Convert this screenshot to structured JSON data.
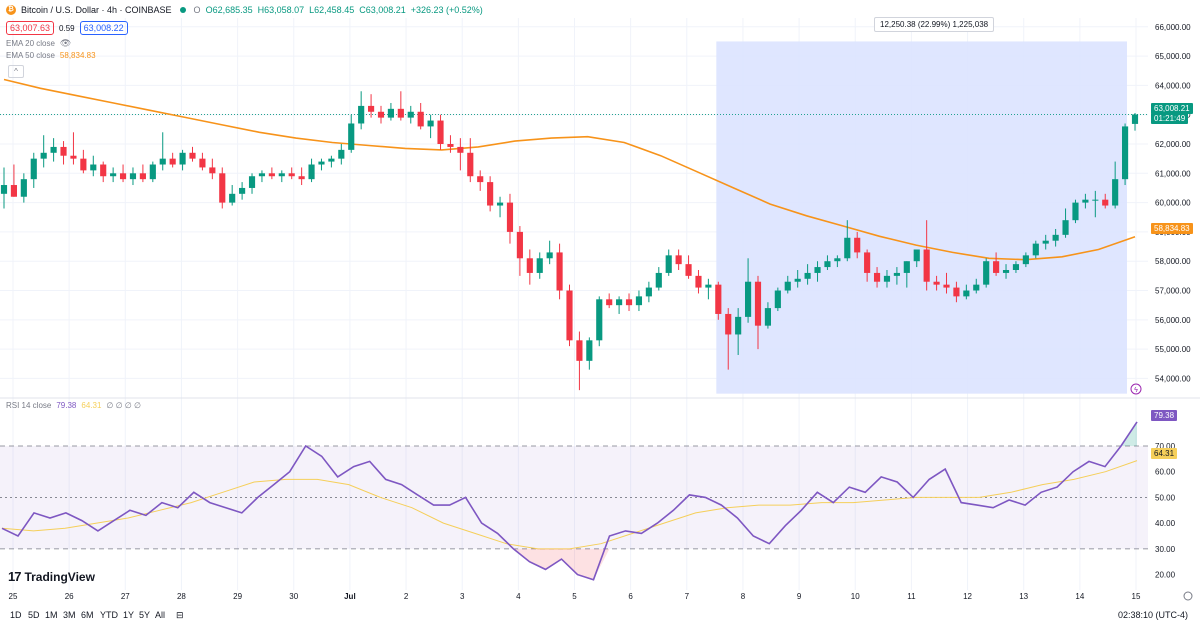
{
  "header": {
    "symbol": "Bitcoin / U.S. Dollar · 4h · COINBASE",
    "open": "O62,685.35",
    "high": "H63,058.07",
    "low": "L62,458.45",
    "close": "C63,008.21",
    "change": "+326.23 (+0.52%)",
    "bid": "63,007.63",
    "spread": "0.59",
    "ask": "63,008.22"
  },
  "indicators": {
    "ema20_label": "EMA 20 close",
    "ema50_label": "EMA 50 close",
    "ema50_value": "58,834.83",
    "rsi_label": "RSI 14 close",
    "rsi_value": "79.38",
    "rsi_ma_value": "64.31",
    "rsi_extra": "∅ ∅ ∅ ∅"
  },
  "measure_label": "12,250.38 (22.99%) 1,225,038",
  "price_labels": {
    "current": "63,008.21",
    "countdown": "01:21:49",
    "ema50": "58,834.83",
    "rsi": "79.38",
    "rsi_ma": "64.31"
  },
  "price_axis": [
    "66,000.00",
    "65,000.00",
    "64,000.00",
    "63,000.00",
    "62,000.00",
    "61,000.00",
    "60,000.00",
    "59,000.00",
    "58,000.00",
    "57,000.00",
    "56,000.00",
    "55,000.00",
    "54,000.00"
  ],
  "rsi_axis": [
    "70.00",
    "60.00",
    "50.00",
    "40.00",
    "30.00",
    "20.00"
  ],
  "time_axis": [
    "25",
    "26",
    "27",
    "28",
    "29",
    "30",
    "Jul",
    "2",
    "3",
    "4",
    "5",
    "6",
    "7",
    "8",
    "9",
    "10",
    "11",
    "12",
    "13",
    "14",
    "15"
  ],
  "timeframes": [
    "1D",
    "5D",
    "1M",
    "3M",
    "6M",
    "YTD",
    "1Y",
    "5Y",
    "All"
  ],
  "clock": "02:38:10 (UTC-4)",
  "brand": "TradingView",
  "colors": {
    "up": "#089981",
    "down": "#f23645",
    "ema50": "#f7931a",
    "rsi": "#7e57c2",
    "rsi_ma": "#f5cf5a",
    "measure": "#dbe3ff"
  },
  "chart_data": {
    "type": "candlestick",
    "interval": "4h",
    "ylim": [
      53400,
      66300
    ],
    "rsi_ylim": [
      14,
      84
    ],
    "candles": [
      {
        "o": 60300,
        "h": 61200,
        "l": 59800,
        "c": 60600
      },
      {
        "o": 60600,
        "h": 61300,
        "l": 60200,
        "c": 60200
      },
      {
        "o": 60200,
        "h": 61000,
        "l": 60000,
        "c": 60800
      },
      {
        "o": 60800,
        "h": 61700,
        "l": 60500,
        "c": 61500
      },
      {
        "o": 61500,
        "h": 62300,
        "l": 61200,
        "c": 61700
      },
      {
        "o": 61700,
        "h": 62200,
        "l": 61400,
        "c": 61900
      },
      {
        "o": 61900,
        "h": 62100,
        "l": 61300,
        "c": 61600
      },
      {
        "o": 61600,
        "h": 62400,
        "l": 61300,
        "c": 61500
      },
      {
        "o": 61500,
        "h": 61800,
        "l": 61000,
        "c": 61100
      },
      {
        "o": 61100,
        "h": 61600,
        "l": 60900,
        "c": 61300
      },
      {
        "o": 61300,
        "h": 61400,
        "l": 60700,
        "c": 60900
      },
      {
        "o": 60900,
        "h": 61200,
        "l": 60700,
        "c": 61000
      },
      {
        "o": 61000,
        "h": 61300,
        "l": 60700,
        "c": 60800
      },
      {
        "o": 60800,
        "h": 61200,
        "l": 60600,
        "c": 61000
      },
      {
        "o": 61000,
        "h": 61300,
        "l": 60700,
        "c": 60800
      },
      {
        "o": 60800,
        "h": 61400,
        "l": 60700,
        "c": 61300
      },
      {
        "o": 61300,
        "h": 62400,
        "l": 61100,
        "c": 61500
      },
      {
        "o": 61500,
        "h": 61700,
        "l": 61200,
        "c": 61300
      },
      {
        "o": 61300,
        "h": 61800,
        "l": 61100,
        "c": 61700
      },
      {
        "o": 61700,
        "h": 61900,
        "l": 61400,
        "c": 61500
      },
      {
        "o": 61500,
        "h": 61700,
        "l": 61100,
        "c": 61200
      },
      {
        "o": 61200,
        "h": 61500,
        "l": 60800,
        "c": 61000
      },
      {
        "o": 61000,
        "h": 61200,
        "l": 59800,
        "c": 60000
      },
      {
        "o": 60000,
        "h": 60600,
        "l": 59900,
        "c": 60300
      },
      {
        "o": 60300,
        "h": 60700,
        "l": 60100,
        "c": 60500
      },
      {
        "o": 60500,
        "h": 61000,
        "l": 60300,
        "c": 60900
      },
      {
        "o": 60900,
        "h": 61100,
        "l": 60700,
        "c": 61000
      },
      {
        "o": 61000,
        "h": 61200,
        "l": 60800,
        "c": 60900
      },
      {
        "o": 60900,
        "h": 61100,
        "l": 60700,
        "c": 61000
      },
      {
        "o": 61000,
        "h": 61200,
        "l": 60800,
        "c": 60900
      },
      {
        "o": 60900,
        "h": 61200,
        "l": 60600,
        "c": 60800
      },
      {
        "o": 60800,
        "h": 61500,
        "l": 60700,
        "c": 61300
      },
      {
        "o": 61300,
        "h": 61500,
        "l": 61100,
        "c": 61400
      },
      {
        "o": 61400,
        "h": 61600,
        "l": 61200,
        "c": 61500
      },
      {
        "o": 61500,
        "h": 62000,
        "l": 61300,
        "c": 61800
      },
      {
        "o": 61800,
        "h": 63000,
        "l": 61700,
        "c": 62700
      },
      {
        "o": 62700,
        "h": 63800,
        "l": 62500,
        "c": 63300
      },
      {
        "o": 63300,
        "h": 63700,
        "l": 62900,
        "c": 63100
      },
      {
        "o": 63100,
        "h": 63300,
        "l": 62700,
        "c": 62900
      },
      {
        "o": 62900,
        "h": 63400,
        "l": 62800,
        "c": 63200
      },
      {
        "o": 63200,
        "h": 63800,
        "l": 62800,
        "c": 62900
      },
      {
        "o": 62900,
        "h": 63300,
        "l": 62700,
        "c": 63100
      },
      {
        "o": 63100,
        "h": 63400,
        "l": 62500,
        "c": 62600
      },
      {
        "o": 62600,
        "h": 63000,
        "l": 62200,
        "c": 62800
      },
      {
        "o": 62800,
        "h": 63000,
        "l": 61800,
        "c": 62000
      },
      {
        "o": 62000,
        "h": 62300,
        "l": 61700,
        "c": 61900
      },
      {
        "o": 61900,
        "h": 62200,
        "l": 61100,
        "c": 61700
      },
      {
        "o": 61700,
        "h": 62200,
        "l": 60700,
        "c": 60900
      },
      {
        "o": 60900,
        "h": 61100,
        "l": 60400,
        "c": 60700
      },
      {
        "o": 60700,
        "h": 60900,
        "l": 59700,
        "c": 59900
      },
      {
        "o": 59900,
        "h": 60200,
        "l": 59500,
        "c": 60000
      },
      {
        "o": 60000,
        "h": 60300,
        "l": 58600,
        "c": 59000
      },
      {
        "o": 59000,
        "h": 59200,
        "l": 57500,
        "c": 58100
      },
      {
        "o": 58100,
        "h": 58400,
        "l": 57200,
        "c": 57600
      },
      {
        "o": 57600,
        "h": 58300,
        "l": 57400,
        "c": 58100
      },
      {
        "o": 58100,
        "h": 58700,
        "l": 57900,
        "c": 58300
      },
      {
        "o": 58300,
        "h": 58600,
        "l": 56700,
        "c": 57000
      },
      {
        "o": 57000,
        "h": 57200,
        "l": 55100,
        "c": 55300
      },
      {
        "o": 55300,
        "h": 55600,
        "l": 53600,
        "c": 54600
      },
      {
        "o": 54600,
        "h": 55400,
        "l": 54300,
        "c": 55300
      },
      {
        "o": 55300,
        "h": 56800,
        "l": 55100,
        "c": 56700
      },
      {
        "o": 56700,
        "h": 56900,
        "l": 56400,
        "c": 56500
      },
      {
        "o": 56500,
        "h": 56800,
        "l": 56200,
        "c": 56700
      },
      {
        "o": 56700,
        "h": 56900,
        "l": 56300,
        "c": 56500
      },
      {
        "o": 56500,
        "h": 57000,
        "l": 56300,
        "c": 56800
      },
      {
        "o": 56800,
        "h": 57300,
        "l": 56600,
        "c": 57100
      },
      {
        "o": 57100,
        "h": 57800,
        "l": 57000,
        "c": 57600
      },
      {
        "o": 57600,
        "h": 58400,
        "l": 57500,
        "c": 58200
      },
      {
        "o": 58200,
        "h": 58400,
        "l": 57700,
        "c": 57900
      },
      {
        "o": 57900,
        "h": 58200,
        "l": 57400,
        "c": 57500
      },
      {
        "o": 57500,
        "h": 57700,
        "l": 56900,
        "c": 57100
      },
      {
        "o": 57100,
        "h": 57400,
        "l": 56700,
        "c": 57200
      },
      {
        "o": 57200,
        "h": 57300,
        "l": 56000,
        "c": 56200
      },
      {
        "o": 56200,
        "h": 56400,
        "l": 54300,
        "c": 55500
      },
      {
        "o": 55500,
        "h": 56400,
        "l": 54800,
        "c": 56100
      },
      {
        "o": 56100,
        "h": 58100,
        "l": 55900,
        "c": 57300
      },
      {
        "o": 57300,
        "h": 57500,
        "l": 55000,
        "c": 55800
      },
      {
        "o": 55800,
        "h": 56600,
        "l": 55700,
        "c": 56400
      },
      {
        "o": 56400,
        "h": 57100,
        "l": 56300,
        "c": 57000
      },
      {
        "o": 57000,
        "h": 57500,
        "l": 56900,
        "c": 57300
      },
      {
        "o": 57300,
        "h": 57700,
        "l": 57100,
        "c": 57400
      },
      {
        "o": 57400,
        "h": 57900,
        "l": 57200,
        "c": 57600
      },
      {
        "o": 57600,
        "h": 58000,
        "l": 57300,
        "c": 57800
      },
      {
        "o": 57800,
        "h": 58200,
        "l": 57700,
        "c": 58000
      },
      {
        "o": 58000,
        "h": 58200,
        "l": 57800,
        "c": 58100
      },
      {
        "o": 58100,
        "h": 59400,
        "l": 58000,
        "c": 58800
      },
      {
        "o": 58800,
        "h": 59000,
        "l": 58100,
        "c": 58300
      },
      {
        "o": 58300,
        "h": 58400,
        "l": 57300,
        "c": 57600
      },
      {
        "o": 57600,
        "h": 57800,
        "l": 57100,
        "c": 57300
      },
      {
        "o": 57300,
        "h": 57700,
        "l": 57100,
        "c": 57500
      },
      {
        "o": 57500,
        "h": 57800,
        "l": 57200,
        "c": 57600
      },
      {
        "o": 57600,
        "h": 58000,
        "l": 57100,
        "c": 58000
      },
      {
        "o": 58000,
        "h": 58300,
        "l": 57800,
        "c": 58400
      },
      {
        "o": 58400,
        "h": 59400,
        "l": 57000,
        "c": 57300
      },
      {
        "o": 57300,
        "h": 57500,
        "l": 57000,
        "c": 57200
      },
      {
        "o": 57200,
        "h": 57600,
        "l": 56900,
        "c": 57100
      },
      {
        "o": 57100,
        "h": 57300,
        "l": 56600,
        "c": 56800
      },
      {
        "o": 56800,
        "h": 57200,
        "l": 56700,
        "c": 57000
      },
      {
        "o": 57000,
        "h": 57400,
        "l": 56900,
        "c": 57200
      },
      {
        "o": 57200,
        "h": 58100,
        "l": 57100,
        "c": 58000
      },
      {
        "o": 58000,
        "h": 58300,
        "l": 57500,
        "c": 57600
      },
      {
        "o": 57600,
        "h": 57900,
        "l": 57400,
        "c": 57700
      },
      {
        "o": 57700,
        "h": 58000,
        "l": 57600,
        "c": 57900
      },
      {
        "o": 57900,
        "h": 58300,
        "l": 57800,
        "c": 58200
      },
      {
        "o": 58200,
        "h": 58700,
        "l": 58100,
        "c": 58600
      },
      {
        "o": 58600,
        "h": 58900,
        "l": 58400,
        "c": 58700
      },
      {
        "o": 58700,
        "h": 59100,
        "l": 58500,
        "c": 58900
      },
      {
        "o": 58900,
        "h": 59800,
        "l": 58800,
        "c": 59400
      },
      {
        "o": 59400,
        "h": 60100,
        "l": 59300,
        "c": 60000
      },
      {
        "o": 60000,
        "h": 60300,
        "l": 59800,
        "c": 60100
      },
      {
        "o": 60100,
        "h": 60400,
        "l": 59500,
        "c": 60100
      },
      {
        "o": 60100,
        "h": 60300,
        "l": 59800,
        "c": 59900
      },
      {
        "o": 59900,
        "h": 61400,
        "l": 59800,
        "c": 60800
      },
      {
        "o": 60800,
        "h": 62700,
        "l": 60600,
        "c": 62600
      },
      {
        "o": 62685.35,
        "h": 63058.07,
        "l": 62458.45,
        "c": 63008.21
      }
    ],
    "ema50": [
      64200,
      63900,
      63650,
      63400,
      63150,
      62900,
      62650,
      62400,
      62200,
      62050,
      61950,
      61850,
      61800,
      61900,
      62100,
      62200,
      62250,
      62050,
      61600,
      61050,
      60500,
      59950,
      59550,
      59200,
      58850,
      58550,
      58300,
      58100,
      58050,
      58150,
      58400,
      58834.83
    ],
    "rsi": [
      38,
      35,
      44,
      42,
      44,
      41,
      37,
      41,
      45,
      43,
      48,
      46,
      52,
      48,
      46,
      44,
      50,
      55,
      60,
      70,
      66,
      58,
      62,
      64,
      57,
      55,
      51,
      47,
      47,
      50,
      40,
      36,
      30,
      25,
      22,
      26,
      20,
      18,
      35,
      37,
      36,
      40,
      45,
      51,
      50,
      47,
      42,
      35,
      32,
      39,
      45,
      52,
      48,
      54,
      52,
      58,
      56,
      50,
      57,
      61,
      48,
      47,
      46,
      49,
      47,
      52,
      54,
      60,
      64,
      62,
      70,
      79.38
    ],
    "rsi_ma": [
      38,
      37,
      38,
      40,
      42,
      45,
      48,
      52,
      56,
      57,
      57,
      55,
      50,
      46,
      40,
      36,
      32,
      30,
      30,
      32,
      36,
      40,
      44,
      46,
      47,
      47,
      48,
      48,
      49,
      50,
      50,
      50,
      52,
      55,
      57,
      60,
      64.31
    ]
  }
}
